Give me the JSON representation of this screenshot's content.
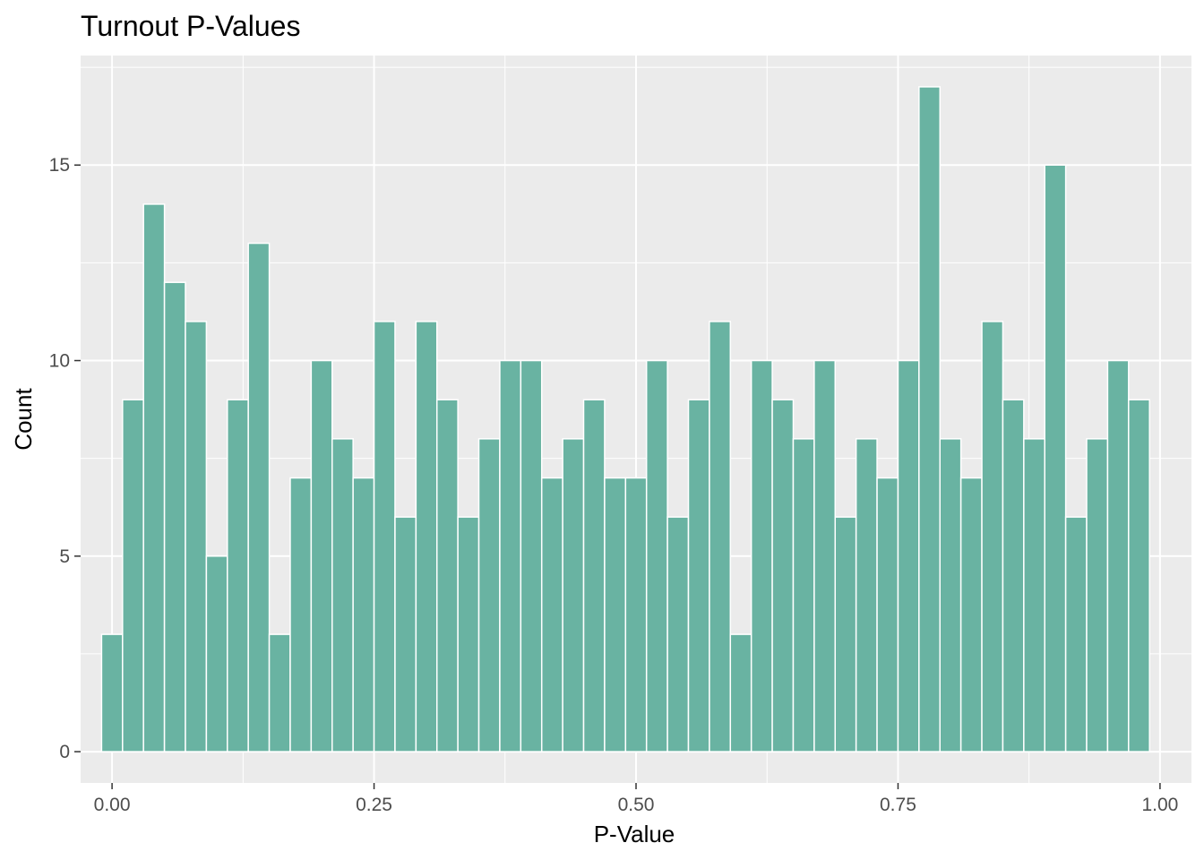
{
  "chart_data": {
    "type": "bar",
    "title": "Turnout P-Values",
    "xlabel": "P-Value",
    "ylabel": "Count",
    "x_ticks": [
      "0.00",
      "0.25",
      "0.50",
      "0.75",
      "1.00"
    ],
    "y_ticks": [
      "0",
      "5",
      "10",
      "15"
    ],
    "xlim": [
      -0.03,
      1.03
    ],
    "ylim": [
      -0.8,
      17.8
    ],
    "bin_width": 0.02,
    "bin_centers": [
      0.0,
      0.02,
      0.04,
      0.06,
      0.08,
      0.1,
      0.12,
      0.14,
      0.16,
      0.18,
      0.2,
      0.22,
      0.24,
      0.26,
      0.28,
      0.3,
      0.32,
      0.34,
      0.36,
      0.38,
      0.4,
      0.42,
      0.44,
      0.46,
      0.48,
      0.5,
      0.52,
      0.54,
      0.56,
      0.58,
      0.6,
      0.62,
      0.64,
      0.66,
      0.68,
      0.7,
      0.72,
      0.74,
      0.76,
      0.78,
      0.8,
      0.82,
      0.84,
      0.86,
      0.88,
      0.9,
      0.92,
      0.94,
      0.96,
      0.98
    ],
    "values": [
      3,
      9,
      14,
      12,
      11,
      5,
      9,
      13,
      3,
      7,
      10,
      8,
      7,
      11,
      6,
      11,
      9,
      6,
      8,
      10,
      10,
      7,
      8,
      9,
      7,
      7,
      10,
      6,
      9,
      11,
      3,
      10,
      9,
      8,
      10,
      6,
      8,
      7,
      10,
      17,
      8,
      7,
      11,
      9,
      8,
      15,
      6,
      8,
      10,
      9
    ],
    "bar_color": "#69b3a2",
    "bar_outline": "#ffffff",
    "panel_background": "#ebebeb",
    "grid": true,
    "legend": "none"
  }
}
